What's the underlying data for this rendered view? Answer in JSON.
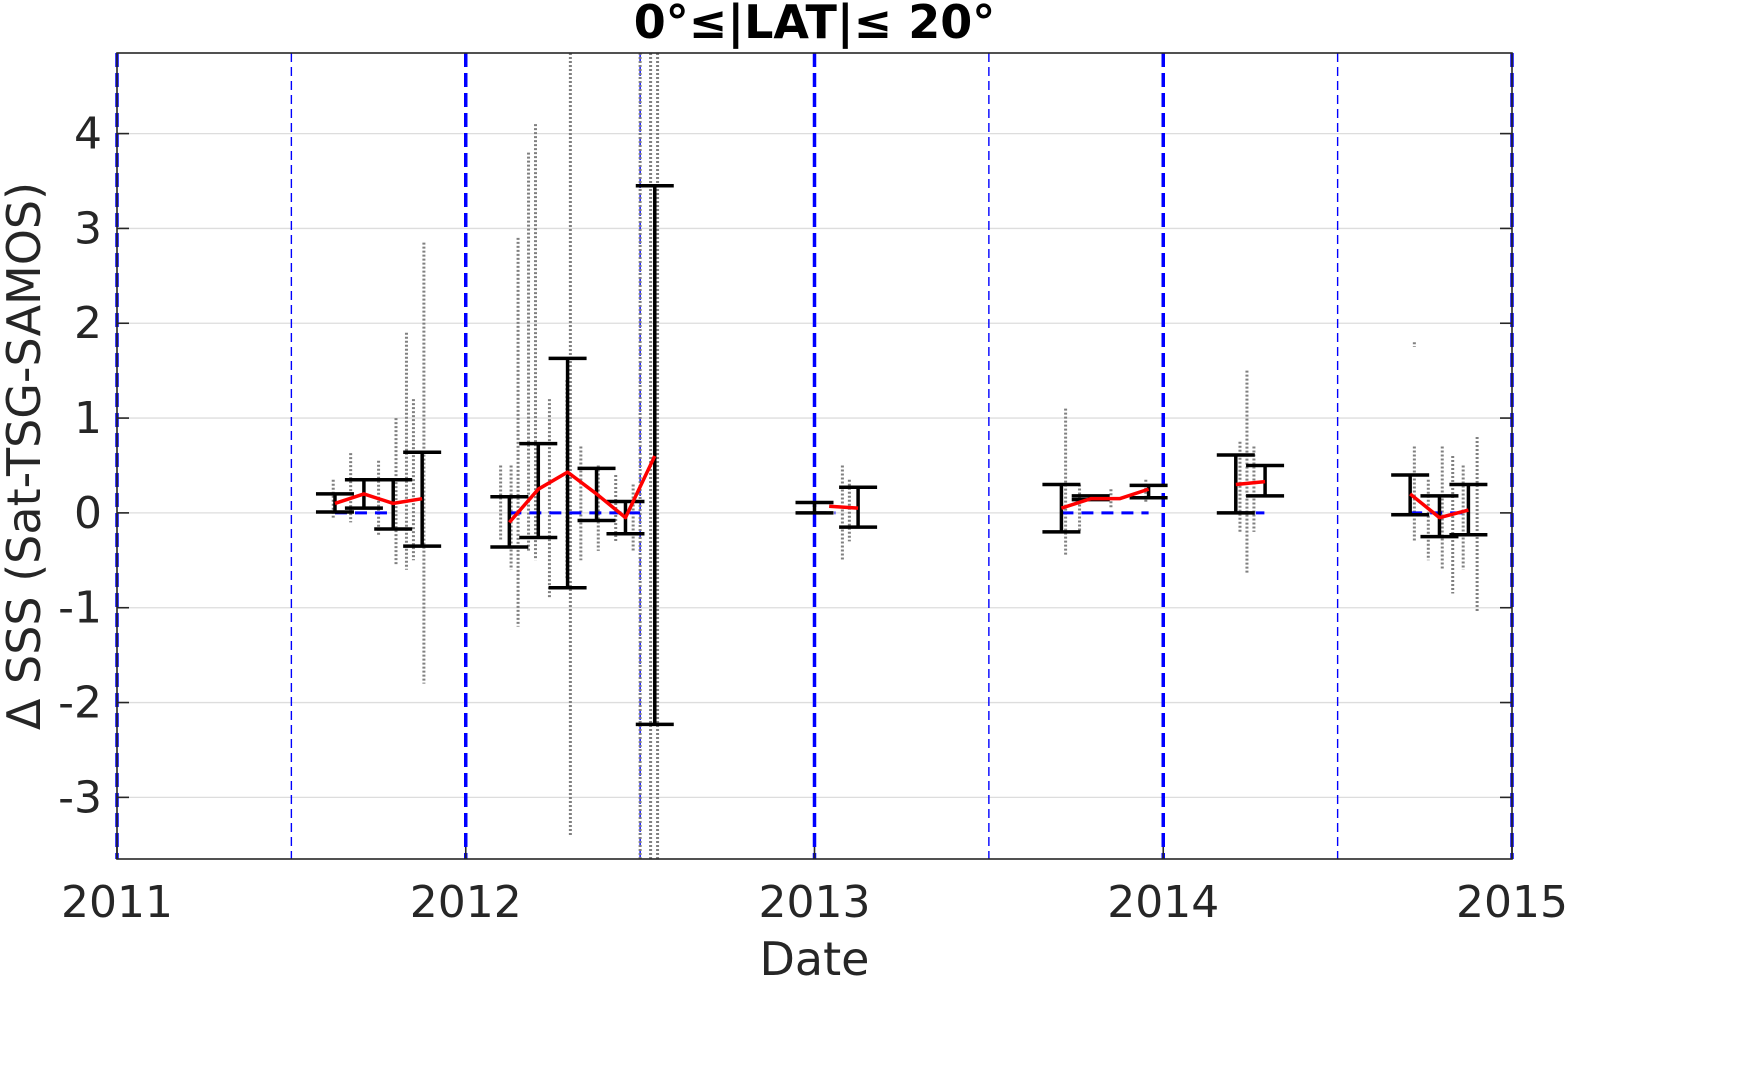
{
  "chart_data": {
    "type": "scatter",
    "title": "0°≤|LAT|≤ 20°",
    "xlabel": "Date",
    "ylabel": "Δ SSS (Sat-TSG-SAMOS)",
    "xlim": [
      2011.0,
      2015.0
    ],
    "ylim": [
      -3.65,
      4.85
    ],
    "x_ticks": [
      2011,
      2012,
      2013,
      2014,
      2015
    ],
    "x_tick_labels": [
      "2011",
      "2012",
      "2013",
      "2014",
      "2015"
    ],
    "y_ticks": [
      -3,
      -2,
      -1,
      0,
      1,
      2,
      3,
      4
    ],
    "y_tick_labels": [
      "-3",
      "-2",
      "-1",
      "0",
      "1",
      "2",
      "3",
      "4"
    ],
    "grid": "horizontal",
    "year_lines": [
      2011.0,
      2012.0,
      2013.0,
      2014.0,
      2015.0
    ],
    "half_year_lines": [
      2011.5,
      2012.5,
      2013.5,
      2014.5
    ],
    "colors": {
      "raw_points": "#808080",
      "errorbar": "#000000",
      "mean_line": "#ff0000",
      "zero_line": "#0000ff",
      "date_lines": "#0000ff",
      "grid": "#dddddd",
      "axes": "#262626"
    },
    "raw_strips": [
      {
        "x": 2011.62,
        "min": -0.05,
        "max": 0.35
      },
      {
        "x": 2011.67,
        "min": -0.1,
        "max": 0.63
      },
      {
        "x": 2011.75,
        "min": -0.25,
        "max": 0.55
      },
      {
        "x": 2011.8,
        "min": -0.55,
        "max": 1.0
      },
      {
        "x": 2011.83,
        "min": -0.6,
        "max": 1.9
      },
      {
        "x": 2011.85,
        "min": -0.5,
        "max": 1.2
      },
      {
        "x": 2011.88,
        "min": -1.8,
        "max": 2.85
      },
      {
        "x": 2012.1,
        "min": -0.3,
        "max": 0.5
      },
      {
        "x": 2012.13,
        "min": -0.6,
        "max": 0.5
      },
      {
        "x": 2012.15,
        "min": -1.2,
        "max": 2.9
      },
      {
        "x": 2012.18,
        "min": -0.4,
        "max": 3.8
      },
      {
        "x": 2012.2,
        "min": -0.5,
        "max": 4.1
      },
      {
        "x": 2012.24,
        "min": -0.9,
        "max": 1.2
      },
      {
        "x": 2012.29,
        "min": -0.7,
        "max": 1.4
      },
      {
        "x": 2012.3,
        "min": -3.4,
        "max": 4.85
      },
      {
        "x": 2012.33,
        "min": -0.5,
        "max": 0.7
      },
      {
        "x": 2012.38,
        "min": -0.4,
        "max": 0.5
      },
      {
        "x": 2012.43,
        "min": -0.3,
        "max": 0.4
      },
      {
        "x": 2012.48,
        "min": -0.4,
        "max": 0.3
      },
      {
        "x": 2012.5,
        "min": -3.65,
        "max": 4.85
      },
      {
        "x": 2012.53,
        "min": -3.65,
        "max": 4.85
      },
      {
        "x": 2012.55,
        "min": -3.65,
        "max": 4.85
      },
      {
        "x": 2013.08,
        "min": -0.5,
        "max": 0.5
      },
      {
        "x": 2013.1,
        "min": -0.3,
        "max": 0.35
      },
      {
        "x": 2013.72,
        "min": -0.45,
        "max": 1.1
      },
      {
        "x": 2013.76,
        "min": -0.2,
        "max": 0.3
      },
      {
        "x": 2013.85,
        "min": 0.05,
        "max": 0.25
      },
      {
        "x": 2013.95,
        "min": 0.1,
        "max": 0.35
      },
      {
        "x": 2014.22,
        "min": -0.2,
        "max": 0.75
      },
      {
        "x": 2014.24,
        "min": -0.65,
        "max": 1.5
      },
      {
        "x": 2014.26,
        "min": -0.2,
        "max": 0.7
      },
      {
        "x": 2014.72,
        "min": 1.75,
        "max": 1.8
      },
      {
        "x": 2014.72,
        "min": -0.3,
        "max": 0.7
      },
      {
        "x": 2014.76,
        "min": -0.5,
        "max": 0.35
      },
      {
        "x": 2014.8,
        "min": -0.6,
        "max": 0.7
      },
      {
        "x": 2014.83,
        "min": -0.85,
        "max": 0.6
      },
      {
        "x": 2014.86,
        "min": -0.6,
        "max": 0.5
      },
      {
        "x": 2014.9,
        "min": -1.05,
        "max": 0.8
      }
    ],
    "errorbars": [
      {
        "x": 2011.625,
        "low": 0.01,
        "high": 0.2
      },
      {
        "x": 2011.708,
        "low": 0.05,
        "high": 0.35
      },
      {
        "x": 2011.792,
        "low": -0.17,
        "high": 0.35
      },
      {
        "x": 2011.875,
        "low": -0.35,
        "high": 0.64
      },
      {
        "x": 2012.125,
        "low": -0.36,
        "high": 0.17
      },
      {
        "x": 2012.208,
        "low": -0.26,
        "high": 0.73
      },
      {
        "x": 2012.292,
        "low": -0.79,
        "high": 1.63
      },
      {
        "x": 2012.375,
        "low": -0.08,
        "high": 0.47
      },
      {
        "x": 2012.458,
        "low": -0.22,
        "high": 0.12
      },
      {
        "x": 2012.542,
        "low": -2.23,
        "high": 3.45
      },
      {
        "x": 2013.0,
        "low": 0.0,
        "high": 0.11
      },
      {
        "x": 2013.125,
        "low": -0.15,
        "high": 0.27
      },
      {
        "x": 2013.708,
        "low": -0.2,
        "high": 0.3
      },
      {
        "x": 2013.792,
        "low": 0.14,
        "high": 0.18
      },
      {
        "x": 2013.958,
        "low": 0.16,
        "high": 0.29
      },
      {
        "x": 2014.208,
        "low": 0.0,
        "high": 0.61
      },
      {
        "x": 2014.292,
        "low": 0.18,
        "high": 0.5
      },
      {
        "x": 2014.708,
        "low": -0.02,
        "high": 0.4
      },
      {
        "x": 2014.792,
        "low": -0.25,
        "high": 0.18
      },
      {
        "x": 2014.875,
        "low": -0.23,
        "high": 0.3
      }
    ],
    "mean_segments": [
      {
        "x": [
          2011.625,
          2011.708,
          2011.792,
          2011.875
        ],
        "y": [
          0.1,
          0.2,
          0.1,
          0.15
        ]
      },
      {
        "x": [
          2012.125,
          2012.208,
          2012.292,
          2012.375,
          2012.458,
          2012.542
        ],
        "y": [
          -0.1,
          0.25,
          0.43,
          0.2,
          -0.05,
          0.6
        ]
      },
      {
        "x": [
          2013.042,
          2013.125
        ],
        "y": [
          0.07,
          0.05
        ]
      },
      {
        "x": [
          2013.708,
          2013.792,
          2013.875,
          2013.958
        ],
        "y": [
          0.05,
          0.15,
          0.15,
          0.25
        ]
      },
      {
        "x": [
          2014.208,
          2014.292
        ],
        "y": [
          0.3,
          0.33
        ]
      },
      {
        "x": [
          2014.708,
          2014.792,
          2014.875
        ],
        "y": [
          0.2,
          -0.05,
          0.03
        ]
      }
    ],
    "zero_segments": [
      {
        "x": [
          2011.625,
          2011.79
        ]
      },
      {
        "x": [
          2012.125,
          2012.5
        ]
      },
      {
        "x": [
          2013.0,
          2013.06
        ]
      },
      {
        "x": [
          2013.708,
          2013.958
        ]
      },
      {
        "x": [
          2014.208,
          2014.29
        ]
      },
      {
        "x": [
          2014.708,
          2014.86
        ]
      }
    ]
  }
}
